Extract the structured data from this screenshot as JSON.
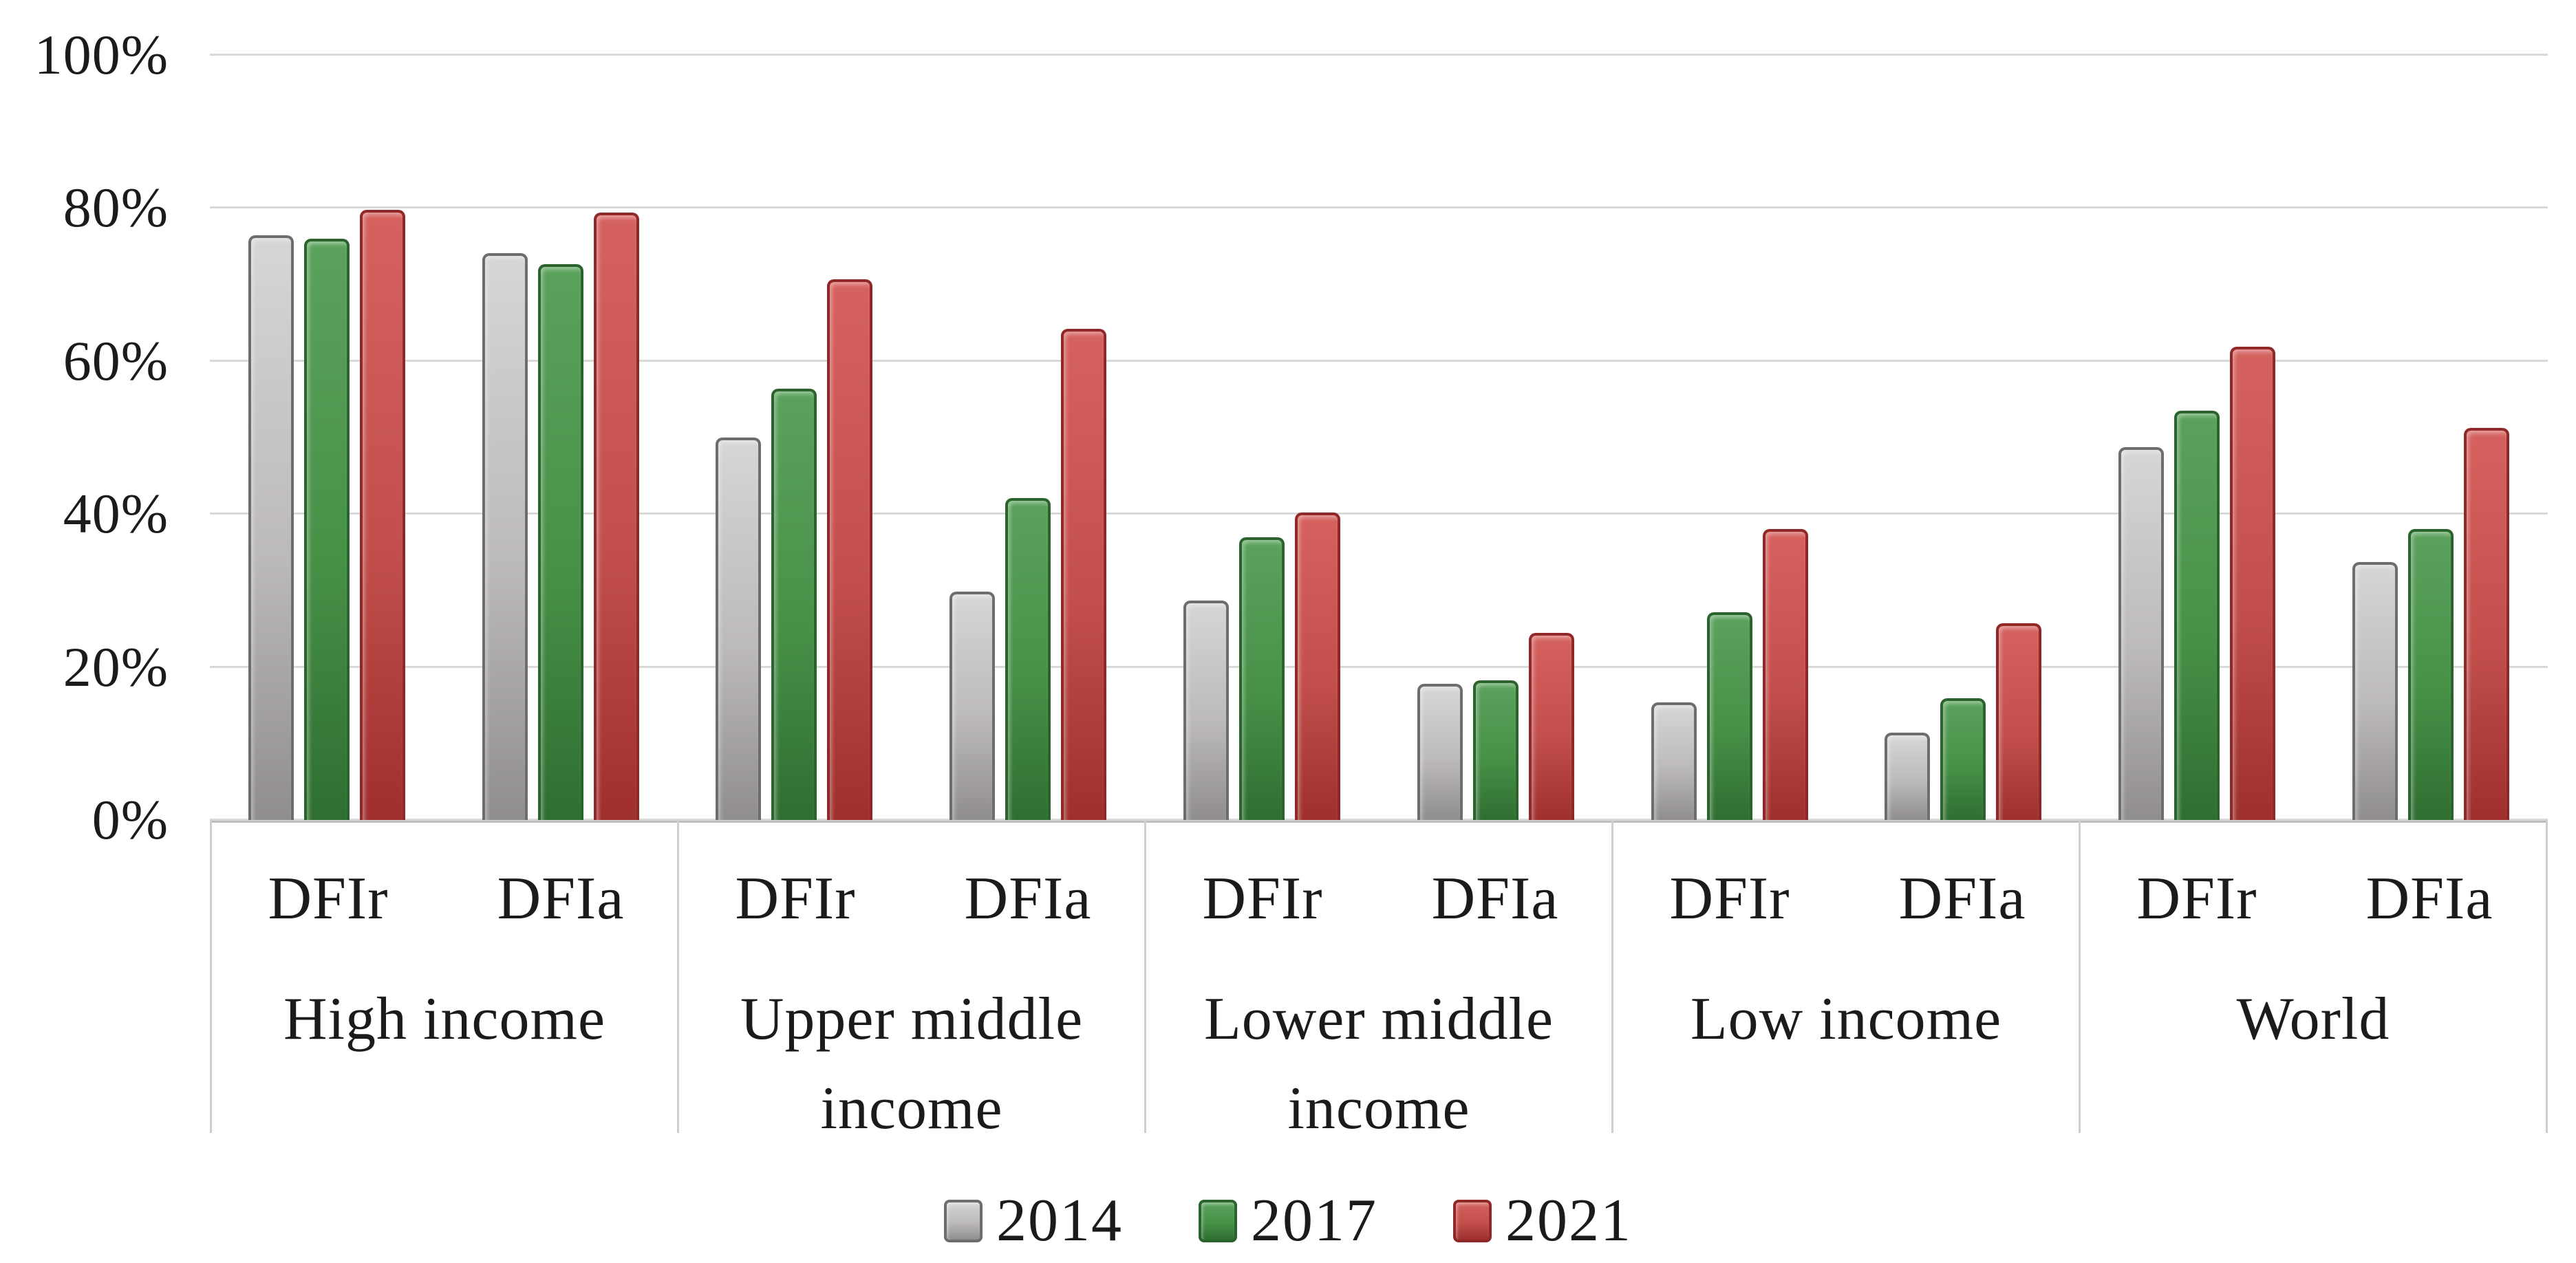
{
  "colors": {
    "background": "#ffffff",
    "gridline": "#d9d9d9",
    "axis_line": "#bfbdbd",
    "divider_line": "#d0cece",
    "text": "#1b1b1b",
    "series": [
      {
        "name": "2014",
        "fill_top": "#d7d5d5",
        "fill_mid": "#bcb9b9",
        "fill_bottom": "#908d8d",
        "border": "#6f6c6c"
      },
      {
        "name": "2017",
        "fill_top": "#5ba25d",
        "fill_mid": "#479147",
        "fill_bottom": "#2f6e31",
        "border": "#2b632d"
      },
      {
        "name": "2021",
        "fill_top": "#d5625f",
        "fill_mid": "#c24f4c",
        "fill_bottom": "#9e2f2d",
        "border": "#8f2826"
      }
    ]
  },
  "chart_data": {
    "type": "bar",
    "title": "",
    "xlabel": "",
    "ylabel": "",
    "y_axis": {
      "min": 0,
      "max": 100,
      "tick_step": 20,
      "tick_labels": [
        "0%",
        "20%",
        "40%",
        "60%",
        "80%",
        "100%"
      ],
      "format": "percent",
      "grid": true
    },
    "legend": {
      "position": "bottom",
      "entries": [
        "2014",
        "2017",
        "2021"
      ]
    },
    "series_names": [
      "2014",
      "2017",
      "2021"
    ],
    "groups": [
      {
        "category": "High income",
        "category_lines": [
          "High income"
        ],
        "subgroups": [
          {
            "label": "DFIr",
            "values": [
              76.4,
              76.0,
              79.8
            ]
          },
          {
            "label": "DFIa",
            "values": [
              74.1,
              72.7,
              79.4
            ]
          }
        ]
      },
      {
        "category": "Upper middle income",
        "category_lines": [
          "Upper middle",
          "income"
        ],
        "subgroups": [
          {
            "label": "DFIr",
            "values": [
              50.0,
              56.4,
              70.7
            ]
          },
          {
            "label": "DFIa",
            "values": [
              29.9,
              42.1,
              64.2
            ]
          }
        ]
      },
      {
        "category": "Lower middle income",
        "category_lines": [
          "Lower middle",
          "income"
        ],
        "subgroups": [
          {
            "label": "DFIr",
            "values": [
              28.7,
              37.0,
              40.2
            ]
          },
          {
            "label": "DFIa",
            "values": [
              17.8,
              18.3,
              24.5
            ]
          }
        ]
      },
      {
        "category": "Low income",
        "category_lines": [
          "Low income"
        ],
        "subgroups": [
          {
            "label": "DFIr",
            "values": [
              15.4,
              27.2,
              38.0
            ]
          },
          {
            "label": "DFIa",
            "values": [
              11.4,
              15.9,
              25.7
            ]
          }
        ]
      },
      {
        "category": "World",
        "category_lines": [
          "World"
        ],
        "subgroups": [
          {
            "label": "DFIr",
            "values": [
              48.7,
              53.5,
              61.9
            ]
          },
          {
            "label": "DFIa",
            "values": [
              33.7,
              38.0,
              51.3
            ]
          }
        ]
      }
    ]
  }
}
